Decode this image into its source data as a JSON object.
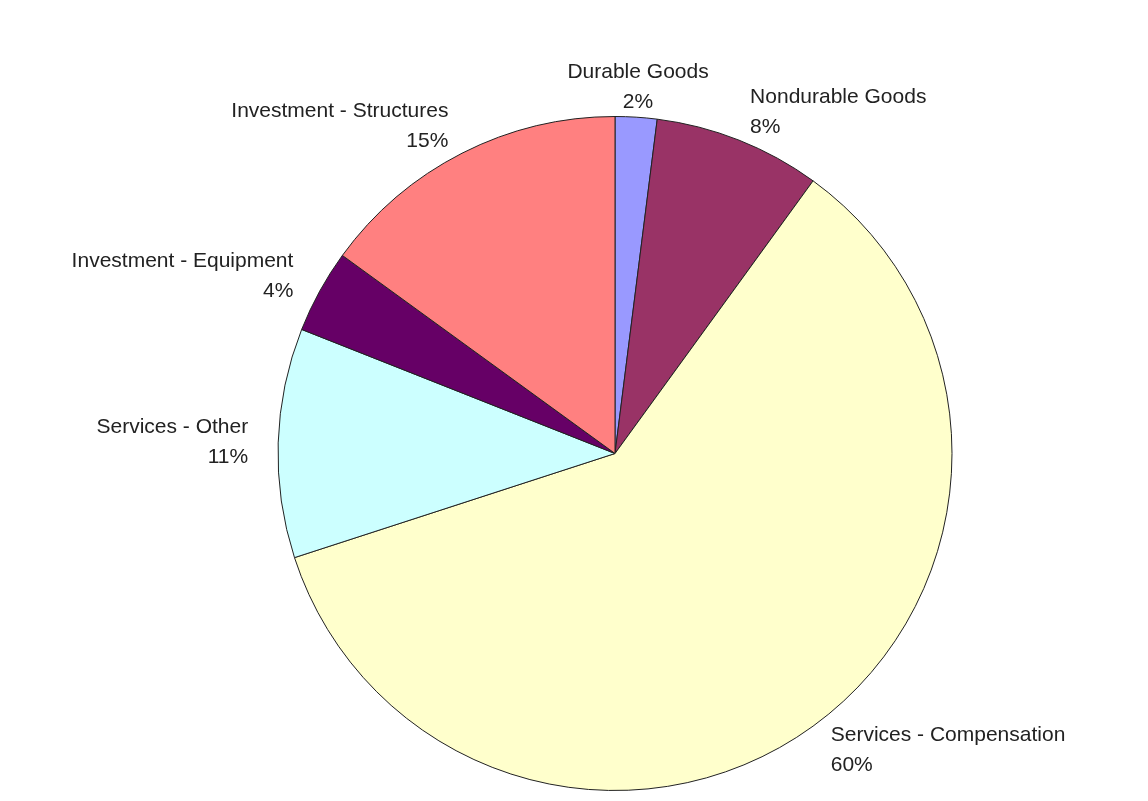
{
  "chart_data": {
    "type": "pie",
    "categories": [
      "Durable Goods",
      "Nondurable Goods",
      "Services - Compensation",
      "Services - Other",
      "Investment - Equipment",
      "Investment - Structures"
    ],
    "values": [
      2,
      8,
      60,
      11,
      4,
      15
    ],
    "value_labels": [
      "2%",
      "8%",
      "60%",
      "11%",
      "4%",
      "15%"
    ],
    "colors": [
      "#9999ff",
      "#993366",
      "#ffffcc",
      "#ccffff",
      "#660066",
      "#ff8080"
    ],
    "legend": false
  }
}
